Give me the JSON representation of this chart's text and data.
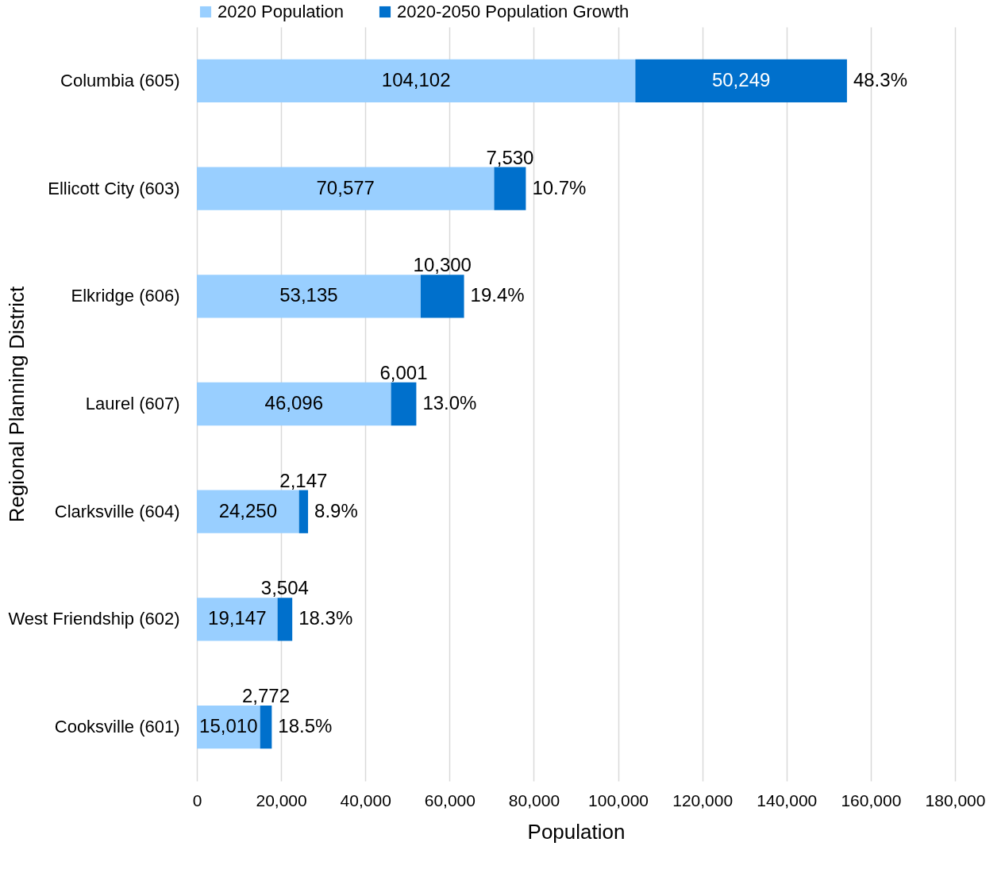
{
  "chart_data": {
    "type": "bar",
    "orientation": "horizontal",
    "stacked": true,
    "categories": [
      "Columbia (605)",
      "Ellicott City (603)",
      "Elkridge (606)",
      "Laurel (607)",
      "Clarksville (604)",
      "West Friendship (602)",
      "Cooksville (601)"
    ],
    "series": [
      {
        "name": "2020 Population",
        "color": "#99cfff",
        "values": [
          104102,
          70577,
          53135,
          46096,
          24250,
          19147,
          15010
        ],
        "value_labels": [
          "104,102",
          "70,577",
          "53,135",
          "46,096",
          "24,250",
          "19,147",
          "15,010"
        ]
      },
      {
        "name": "2020-2050 Population Growth",
        "color": "#0070cc",
        "values": [
          50249,
          7530,
          10300,
          6001,
          2147,
          3504,
          2772
        ],
        "value_labels": [
          "50,249",
          "7,530",
          "10,300",
          "6,001",
          "2,147",
          "3,504",
          "2,772"
        ]
      }
    ],
    "xlabel": "Population",
    "ylabel": "Regional Planning District",
    "xlim": [
      0,
      180000
    ],
    "xticks": [
      0,
      {
        "value": 20000,
        "label": "20,000"
      },
      {
        "value": 40000,
        "label": "40,000"
      },
      {
        "value": 60000,
        "label": "60,000"
      },
      {
        "value": 80000,
        "label": "80,000"
      },
      {
        "value": 100000,
        "label": "100,000"
      },
      {
        "value": 120000,
        "label": "120,000"
      },
      {
        "value": 140000,
        "label": "140,000"
      },
      {
        "value": 160000,
        "label": "160,000"
      },
      {
        "value": 180000,
        "label": "180,000"
      }
    ],
    "grid": "x",
    "legend": "top",
    "annotations": [
      {
        "text": "48.3%",
        "x": 154351,
        "y": "Columbia (605)"
      },
      {
        "text": "10.7%",
        "x": 78107,
        "y": "Ellicott City (603)"
      },
      {
        "text": "19.4%",
        "x": 63435,
        "y": "Elkridge (606)"
      },
      {
        "text": "13.0%",
        "x": 52097,
        "y": "Laurel (607)"
      },
      {
        "text": "8.9%",
        "x": 26397,
        "y": "Clarksville (604)"
      },
      {
        "text": "18.3%",
        "x": 22651,
        "y": "West Friendship (602)"
      },
      {
        "text": "18.5%",
        "x": 17782,
        "y": "Cooksville (601)"
      }
    ]
  }
}
